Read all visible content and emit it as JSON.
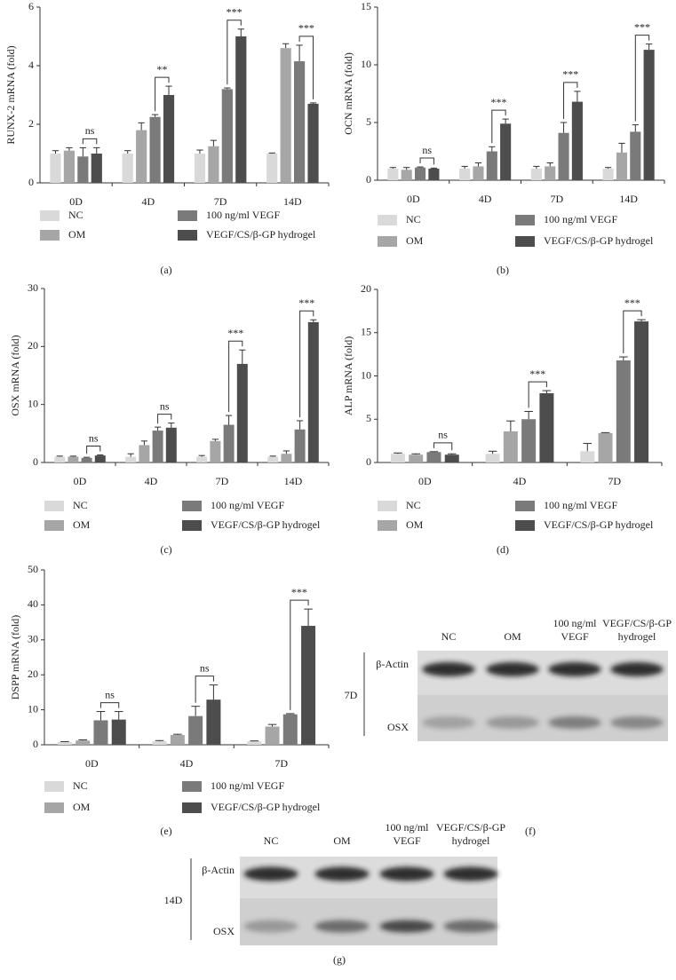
{
  "chart_data": [
    {
      "type": "bar",
      "ylabel": "RUNX-2 mRNA (fold)",
      "caption": "(a)",
      "categories": [
        "0D",
        "4D",
        "7D",
        "14D"
      ],
      "ylim": [
        0,
        6
      ],
      "yticks": [
        0,
        2,
        4,
        6
      ],
      "series": [
        {
          "name": "NC",
          "color": "#d9d9d9",
          "values": [
            1.0,
            1.0,
            1.0,
            1.0
          ],
          "errors": [
            0.1,
            0.1,
            0.12,
            0.02
          ]
        },
        {
          "name": "OM",
          "color": "#a6a6a6",
          "values": [
            1.1,
            1.8,
            1.25,
            4.6
          ],
          "errors": [
            0.1,
            0.25,
            0.2,
            0.15
          ]
        },
        {
          "name": "100 ng/ml VEGF",
          "color": "#7a7a7a",
          "values": [
            0.9,
            2.25,
            3.2,
            4.15
          ],
          "errors": [
            0.3,
            0.08,
            0.04,
            0.55
          ]
        },
        {
          "name": "VEGF/CS/β-GP hydrogel",
          "color": "#4d4d4d",
          "values": [
            1.0,
            3.0,
            5.0,
            2.7
          ],
          "errors": [
            0.2,
            0.3,
            0.25,
            0.03
          ]
        }
      ],
      "significance": [
        "ns",
        "**",
        "***",
        "***"
      ]
    },
    {
      "type": "bar",
      "ylabel": "OCN mRNA (fold)",
      "caption": "(b)",
      "categories": [
        "0D",
        "4D",
        "7D",
        "14D"
      ],
      "ylim": [
        0,
        15
      ],
      "yticks": [
        0,
        5,
        10,
        15
      ],
      "series": [
        {
          "name": "NC",
          "color": "#d9d9d9",
          "values": [
            1.0,
            1.0,
            1.0,
            1.0
          ],
          "errors": [
            0.1,
            0.2,
            0.2,
            0.1
          ]
        },
        {
          "name": "OM",
          "color": "#a6a6a6",
          "values": [
            0.9,
            1.2,
            1.2,
            2.4
          ],
          "errors": [
            0.2,
            0.3,
            0.3,
            0.8
          ]
        },
        {
          "name": "100 ng/ml VEGF",
          "color": "#7a7a7a",
          "values": [
            1.1,
            2.5,
            4.1,
            4.2
          ],
          "errors": [
            0.05,
            0.4,
            0.9,
            0.6
          ]
        },
        {
          "name": "VEGF/CS/β-GP hydrogel",
          "color": "#4d4d4d",
          "values": [
            1.0,
            4.9,
            6.8,
            11.3
          ],
          "errors": [
            0.05,
            0.4,
            0.9,
            0.5
          ]
        }
      ],
      "significance": [
        "ns",
        "***",
        "***",
        "***"
      ]
    },
    {
      "type": "bar",
      "ylabel": "OSX mRNA (fold)",
      "caption": "(c)",
      "categories": [
        "0D",
        "4D",
        "7D",
        "14D"
      ],
      "ylim": [
        0,
        30
      ],
      "yticks": [
        0,
        10,
        20,
        30
      ],
      "series": [
        {
          "name": "NC",
          "color": "#d9d9d9",
          "values": [
            1.0,
            1.0,
            1.0,
            1.0
          ],
          "errors": [
            0.1,
            0.5,
            0.2,
            0.1
          ]
        },
        {
          "name": "OM",
          "color": "#a6a6a6",
          "values": [
            1.0,
            3.0,
            3.7,
            1.5
          ],
          "errors": [
            0.1,
            0.7,
            0.3,
            0.5
          ]
        },
        {
          "name": "100 ng/ml VEGF",
          "color": "#7a7a7a",
          "values": [
            0.8,
            5.5,
            6.5,
            5.7
          ],
          "errors": [
            0.1,
            0.6,
            1.6,
            1.5
          ]
        },
        {
          "name": "VEGF/CS/β-GP hydrogel",
          "color": "#4d4d4d",
          "values": [
            1.2,
            6.0,
            17.0,
            24.2
          ],
          "errors": [
            0.1,
            0.8,
            2.4,
            0.4
          ]
        }
      ],
      "significance": [
        "ns",
        "ns",
        "***",
        "***"
      ]
    },
    {
      "type": "bar",
      "ylabel": "ALP mRNA (fold)",
      "caption": "(d)",
      "categories": [
        "0D",
        "4D",
        "7D"
      ],
      "ylim": [
        0,
        20
      ],
      "yticks": [
        0,
        5,
        10,
        15,
        20
      ],
      "series": [
        {
          "name": "NC",
          "color": "#d9d9d9",
          "values": [
            1.0,
            1.0,
            1.3
          ],
          "errors": [
            0.1,
            0.3,
            0.9
          ]
        },
        {
          "name": "OM",
          "color": "#a6a6a6",
          "values": [
            0.9,
            3.6,
            3.4
          ],
          "errors": [
            0.1,
            1.2,
            0.05
          ]
        },
        {
          "name": "100 ng/ml VEGF",
          "color": "#7a7a7a",
          "values": [
            1.2,
            5.0,
            11.8
          ],
          "errors": [
            0.05,
            0.9,
            0.4
          ]
        },
        {
          "name": "VEGF/CS/β-GP hydrogel",
          "color": "#4d4d4d",
          "values": [
            0.9,
            8.0,
            16.3
          ],
          "errors": [
            0.1,
            0.3,
            0.2
          ]
        }
      ],
      "significance": [
        "ns",
        "***",
        "***"
      ]
    },
    {
      "type": "bar",
      "ylabel": "DSPP mRNA (fold)",
      "caption": "(e)",
      "categories": [
        "0D",
        "4D",
        "7D"
      ],
      "ylim": [
        0,
        50
      ],
      "yticks": [
        0,
        10,
        20,
        30,
        40,
        50
      ],
      "series": [
        {
          "name": "NC",
          "color": "#d9d9d9",
          "values": [
            0.8,
            1.0,
            1.0
          ],
          "errors": [
            0.1,
            0.2,
            0.1
          ]
        },
        {
          "name": "OM",
          "color": "#a6a6a6",
          "values": [
            1.2,
            2.8,
            5.2
          ],
          "errors": [
            0.2,
            0.2,
            0.6
          ]
        },
        {
          "name": "100 ng/ml VEGF",
          "color": "#7a7a7a",
          "values": [
            7.0,
            8.2,
            8.7
          ],
          "errors": [
            2.5,
            2.8,
            0.2
          ]
        },
        {
          "name": "VEGF/CS/β-GP hydrogel",
          "color": "#4d4d4d",
          "values": [
            7.2,
            12.9,
            34.0
          ],
          "errors": [
            2.3,
            4.2,
            4.8
          ]
        }
      ],
      "significance": [
        "ns",
        "ns",
        "***"
      ]
    }
  ],
  "blots": [
    {
      "group": "7D",
      "caption": "(f)",
      "rows": [
        "β-Actin",
        "OSX"
      ],
      "columns": [
        [
          "NC"
        ],
        [
          "OM"
        ],
        [
          "100 ng/ml",
          "VEGF"
        ],
        [
          "VEGF/CS/β-GP",
          "hydrogel"
        ]
      ]
    },
    {
      "group": "14D",
      "caption": "(g)",
      "rows": [
        "β-Actin",
        "OSX"
      ],
      "columns": [
        [
          "NC"
        ],
        [
          "OM"
        ],
        [
          "100 ng/ml",
          "VEGF"
        ],
        [
          "VEGF/CS/β-GP",
          "hydrogel"
        ]
      ]
    }
  ]
}
